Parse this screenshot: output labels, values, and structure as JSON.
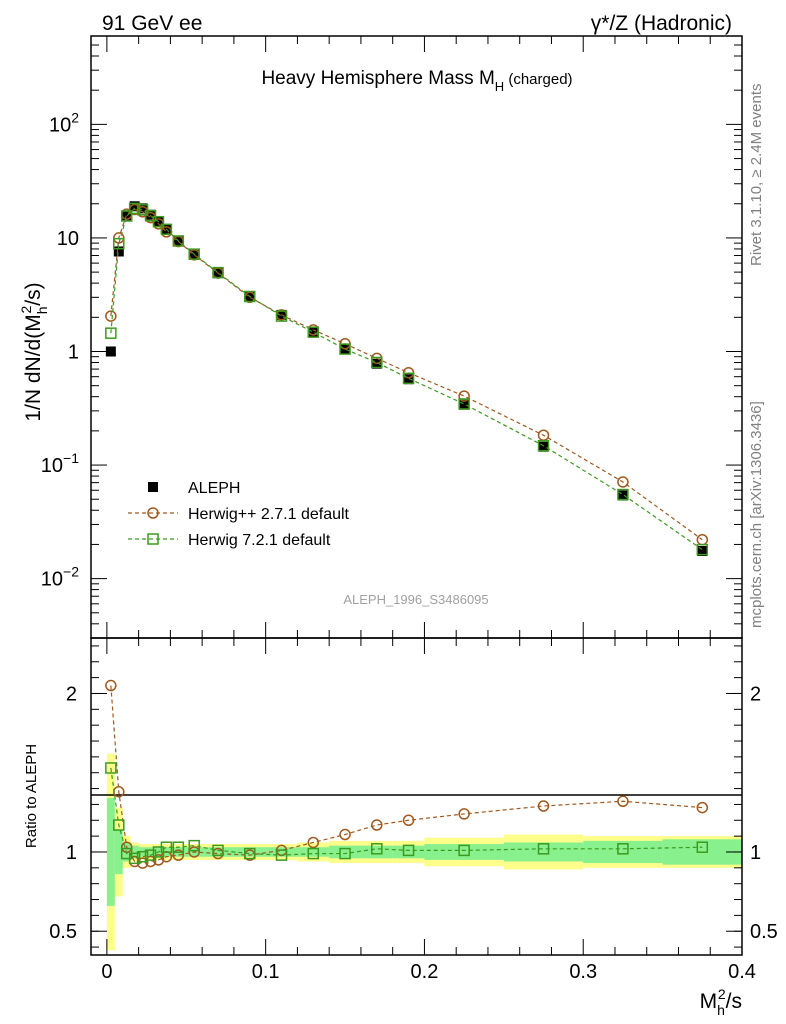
{
  "header": {
    "left": "91 GeV ee",
    "right": "γ*/Z (Hadronic)"
  },
  "side_labels": {
    "rivet": "Rivet 3.1.10, ≥ 2.4M events",
    "mcplots": "mcplots.cern.ch [arXiv:1306.3436]"
  },
  "watermark": "ALEPH_1996_S3486095",
  "chart_data": [
    {
      "type": "scatter",
      "title": "Heavy Hemisphere Mass M",
      "title_sub": "H",
      "title_suffix": " (charged)",
      "ylabel": "1/N dN/d(M",
      "ylabel_sub": "h",
      "ylabel_sup": "2",
      "ylabel_tail": "/s)",
      "yscale": "log",
      "xlim": [
        -0.01,
        0.4
      ],
      "ylim": [
        0.003,
        600
      ],
      "y_ticks": [
        {
          "value": 0.01,
          "base": "10",
          "exp": "−2"
        },
        {
          "value": 0.1,
          "base": "10",
          "exp": "−1"
        },
        {
          "value": 1,
          "base": "1",
          "exp": ""
        },
        {
          "value": 10,
          "base": "10",
          "exp": ""
        },
        {
          "value": 100,
          "base": "10",
          "exp": "2"
        }
      ],
      "legend_position": "bottom-left",
      "x": [
        0.0025,
        0.0075,
        0.0125,
        0.0175,
        0.0225,
        0.0275,
        0.0325,
        0.0375,
        0.045,
        0.055,
        0.07,
        0.09,
        0.11,
        0.13,
        0.15,
        0.17,
        0.19,
        0.225,
        0.275,
        0.325,
        0.375
      ],
      "series": [
        {
          "name": "ALEPH",
          "color": "#000000",
          "marker": "filled-square",
          "values": [
            1.0,
            7.6,
            15.8,
            19.0,
            18.2,
            16.0,
            14.0,
            11.8,
            9.5,
            7.1,
            4.9,
            3.05,
            2.1,
            1.48,
            1.05,
            0.78,
            0.57,
            0.34,
            0.145,
            0.054,
            0.0175
          ]
        },
        {
          "name": "Herwig++ 2.7.1 default",
          "color": "#a0581e",
          "marker": "open-circle",
          "values": [
            2.05,
            10.0,
            16.2,
            17.8,
            17.0,
            15.1,
            13.3,
            11.3,
            9.3,
            7.1,
            4.9,
            3.0,
            2.1,
            1.55,
            1.17,
            0.87,
            0.65,
            0.405,
            0.183,
            0.071,
            0.022
          ]
        },
        {
          "name": "Herwig 7.2.1 default",
          "color": "#3c9a1e",
          "marker": "open-square",
          "values": [
            1.45,
            8.9,
            15.6,
            18.2,
            17.7,
            15.7,
            13.9,
            11.9,
            9.4,
            7.2,
            4.95,
            3.05,
            2.05,
            1.48,
            1.05,
            0.8,
            0.58,
            0.345,
            0.148,
            0.055,
            0.018
          ]
        }
      ]
    },
    {
      "type": "line",
      "ylabel": "Ratio to ALEPH",
      "xlabel": "M",
      "xlabel_sub": "h",
      "xlabel_sup": "2",
      "xlabel_tail": "/s",
      "xlim": [
        -0.01,
        0.4
      ],
      "ylim": [
        0.35,
        2.35
      ],
      "x_ticks": [
        {
          "value": 0,
          "label": "0"
        },
        {
          "value": 0.1,
          "label": "0.1"
        },
        {
          "value": 0.2,
          "label": "0.2"
        },
        {
          "value": 0.3,
          "label": "0.3"
        },
        {
          "value": 0.4,
          "label": "0.4"
        }
      ],
      "y_ticks": [
        {
          "value": 0.5,
          "label": "0.5"
        },
        {
          "value": 1,
          "label": "1"
        },
        {
          "value": 2,
          "label": "2"
        }
      ],
      "x": [
        0.0025,
        0.0075,
        0.0125,
        0.0175,
        0.0225,
        0.0275,
        0.0325,
        0.0375,
        0.045,
        0.055,
        0.07,
        0.09,
        0.11,
        0.13,
        0.15,
        0.17,
        0.19,
        0.225,
        0.275,
        0.325,
        0.375
      ],
      "bin_edges": [
        0,
        0.005,
        0.01,
        0.015,
        0.02,
        0.025,
        0.03,
        0.035,
        0.04,
        0.05,
        0.06,
        0.08,
        0.1,
        0.12,
        0.14,
        0.16,
        0.18,
        0.2,
        0.25,
        0.3,
        0.35,
        0.4
      ],
      "band_inner": [
        0.34,
        0.14,
        0.06,
        0.04,
        0.03,
        0.03,
        0.03,
        0.03,
        0.03,
        0.03,
        0.03,
        0.03,
        0.03,
        0.03,
        0.04,
        0.04,
        0.04,
        0.05,
        0.06,
        0.07,
        0.08
      ],
      "band_outer": [
        0.62,
        0.28,
        0.1,
        0.06,
        0.05,
        0.05,
        0.05,
        0.05,
        0.05,
        0.05,
        0.05,
        0.05,
        0.05,
        0.06,
        0.07,
        0.07,
        0.07,
        0.09,
        0.11,
        0.1,
        0.1
      ],
      "band_colors": {
        "inner": "#88f08c",
        "outer": "#fdfd8a"
      },
      "series": [
        {
          "name": "Herwig++ 2.7.1 default",
          "color": "#a0581e",
          "marker": "open-circle",
          "values": [
            2.05,
            1.38,
            1.03,
            0.94,
            0.93,
            0.94,
            0.95,
            0.97,
            0.98,
            1.0,
            0.99,
            0.98,
            1.01,
            1.06,
            1.11,
            1.17,
            1.2,
            1.24,
            1.29,
            1.32,
            1.28
          ]
        },
        {
          "name": "Herwig 7.2.1 default",
          "color": "#3c9a1e",
          "marker": "open-square",
          "values": [
            1.53,
            1.17,
            0.99,
            0.96,
            0.97,
            0.98,
            1.0,
            1.03,
            1.03,
            1.04,
            1.01,
            0.99,
            0.98,
            0.99,
            0.99,
            1.02,
            1.01,
            1.01,
            1.02,
            1.02,
            1.03
          ]
        }
      ]
    }
  ]
}
